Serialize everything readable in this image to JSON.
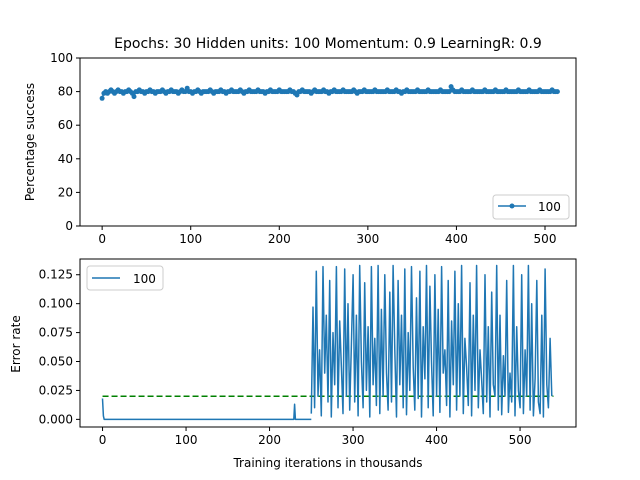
{
  "chart_data": [
    {
      "type": "line",
      "title": "Epochs: 30 Hidden units: 100 Momentum: 0.9 LearningR: 0.9",
      "xlabel": "",
      "ylabel": "Percentage success",
      "xlim": [
        -25,
        535
      ],
      "ylim": [
        0,
        100
      ],
      "xticks": [
        0,
        100,
        200,
        300,
        400,
        500
      ],
      "yticks": [
        0,
        20,
        40,
        60,
        80,
        100
      ],
      "grid": false,
      "legend_position": "lower right",
      "series": [
        {
          "name": "100",
          "color": "#1f77b4",
          "marker": "circle",
          "x_start": 0,
          "x_step": 2,
          "values": [
            76,
            79,
            80,
            79,
            80,
            81,
            80,
            79,
            80,
            81,
            80,
            80,
            79,
            80,
            80,
            81,
            80,
            79,
            77,
            80,
            80,
            81,
            80,
            80,
            79,
            80,
            80,
            81,
            80,
            80,
            79,
            80,
            80,
            80,
            81,
            80,
            79,
            80,
            80,
            81,
            80,
            80,
            80,
            79,
            80,
            81,
            80,
            80,
            82,
            80,
            80,
            79,
            80,
            80,
            81,
            80,
            79,
            80,
            80,
            80,
            80,
            81,
            80,
            79,
            80,
            80,
            80,
            81,
            80,
            80,
            79,
            80,
            80,
            81,
            80,
            80,
            80,
            80,
            81,
            80,
            79,
            80,
            80,
            81,
            80,
            80,
            80,
            80,
            81,
            80,
            80,
            80,
            79,
            80,
            80,
            81,
            80,
            80,
            80,
            80,
            81,
            80,
            80,
            80,
            80,
            80,
            81,
            80,
            80,
            79,
            78,
            80,
            80,
            81,
            80,
            80,
            80,
            80,
            79,
            80,
            81,
            80,
            80,
            80,
            80,
            81,
            80,
            80,
            79,
            80,
            80,
            81,
            80,
            80,
            80,
            80,
            81,
            80,
            80,
            80,
            80,
            80,
            81,
            80,
            79,
            80,
            80,
            80,
            81,
            80,
            80,
            80,
            80,
            80,
            81,
            80,
            80,
            80,
            80,
            80,
            80,
            81,
            80,
            80,
            80,
            80,
            81,
            80,
            80,
            79,
            80,
            80,
            81,
            80,
            80,
            80,
            80,
            80,
            81,
            80,
            80,
            80,
            80,
            80,
            81,
            80,
            80,
            80,
            80,
            80,
            80,
            81,
            80,
            80,
            80,
            80,
            80,
            83,
            81,
            80,
            80,
            80,
            80,
            81,
            80,
            80,
            80,
            80,
            80,
            81,
            80,
            80,
            80,
            80,
            80,
            80,
            81,
            80,
            80,
            80,
            80,
            80,
            81,
            80,
            80,
            80,
            80,
            80,
            81,
            80,
            80,
            80,
            80,
            80,
            80,
            81,
            80,
            80,
            80,
            80,
            80,
            81,
            80,
            80,
            80,
            80,
            80,
            81,
            80,
            80,
            80,
            80,
            80,
            80,
            81,
            80,
            80,
            80
          ]
        }
      ]
    },
    {
      "type": "line",
      "title": "",
      "xlabel": "Training iterations in thousands",
      "ylabel": "Error rate",
      "xlim": [
        -27,
        567
      ],
      "ylim": [
        -0.0066,
        0.1386
      ],
      "xticks": [
        0,
        100,
        200,
        300,
        400,
        500
      ],
      "yticks": [
        0.0,
        0.025,
        0.05,
        0.075,
        0.1,
        0.125
      ],
      "ytick_labels": [
        "0.000",
        "0.025",
        "0.050",
        "0.075",
        "0.100",
        "0.125"
      ],
      "grid": false,
      "legend_position": "upper left",
      "series": [
        {
          "name": "100",
          "color": "#1f77b4",
          "x": [
            0,
            1,
            2,
            228,
            229,
            230,
            231,
            232,
            250
          ],
          "values": [
            0.018,
            0.003,
            0,
            0,
            0,
            0.013,
            0,
            0,
            0
          ]
        }
      ],
      "noisy_segment": {
        "color": "#1f77b4",
        "x_start": 250,
        "x_end": 540,
        "x_step": 2,
        "values": [
          0.005,
          0.097,
          0.01,
          0.128,
          0.02,
          0.06,
          0.003,
          0.132,
          0.04,
          0.09,
          0.015,
          0.12,
          0.002,
          0.075,
          0.03,
          0.132,
          0.01,
          0.085,
          0.045,
          0.005,
          0.13,
          0.02,
          0.1,
          0.008,
          0.065,
          0.125,
          0.015,
          0.09,
          0.003,
          0.133,
          0.05,
          0.01,
          0.118,
          0.025,
          0.08,
          0.002,
          0.132,
          0.03,
          0.07,
          0.012,
          0.133,
          0.005,
          0.095,
          0.02,
          0.125,
          0.04,
          0.008,
          0.11,
          0.015,
          0.133,
          0.06,
          0.002,
          0.12,
          0.03,
          0.09,
          0.01,
          0.13,
          0.004,
          0.075,
          0.025,
          0.132,
          0.045,
          0.008,
          0.105,
          0.018,
          0.128,
          0.002,
          0.08,
          0.035,
          0.133,
          0.01,
          0.115,
          0.05,
          0.003,
          0.125,
          0.02,
          0.095,
          0.006,
          0.132,
          0.04,
          0.06,
          0.012,
          0.12,
          0.002,
          0.085,
          0.03,
          0.128,
          0.008,
          0.1,
          0.02,
          0.133,
          0.005,
          0.07,
          0.045,
          0.012,
          0.118,
          0.003,
          0.09,
          0.025,
          0.133,
          0.01,
          0.06,
          0.035,
          0.005,
          0.125,
          0.015,
          0.08,
          0.002,
          0.11,
          0.03,
          0.02,
          0.133,
          0.008,
          0.09,
          0.004,
          0.055,
          0.02,
          0.12,
          0.006,
          0.04,
          0.015,
          0.133,
          0.003,
          0.08,
          0.025,
          0.01,
          0.125,
          0.005,
          0.06,
          0.02,
          0.133,
          0.008,
          0.1,
          0.003,
          0.035,
          0.12,
          0.015,
          0.005,
          0.09,
          0.002,
          0.13,
          0.03,
          0.01,
          0.07,
          0.02
        ]
      },
      "reference_line": {
        "value": 0.02,
        "color": "#008000",
        "style": "dashed",
        "x_start": 0,
        "x_end": 540
      }
    }
  ]
}
